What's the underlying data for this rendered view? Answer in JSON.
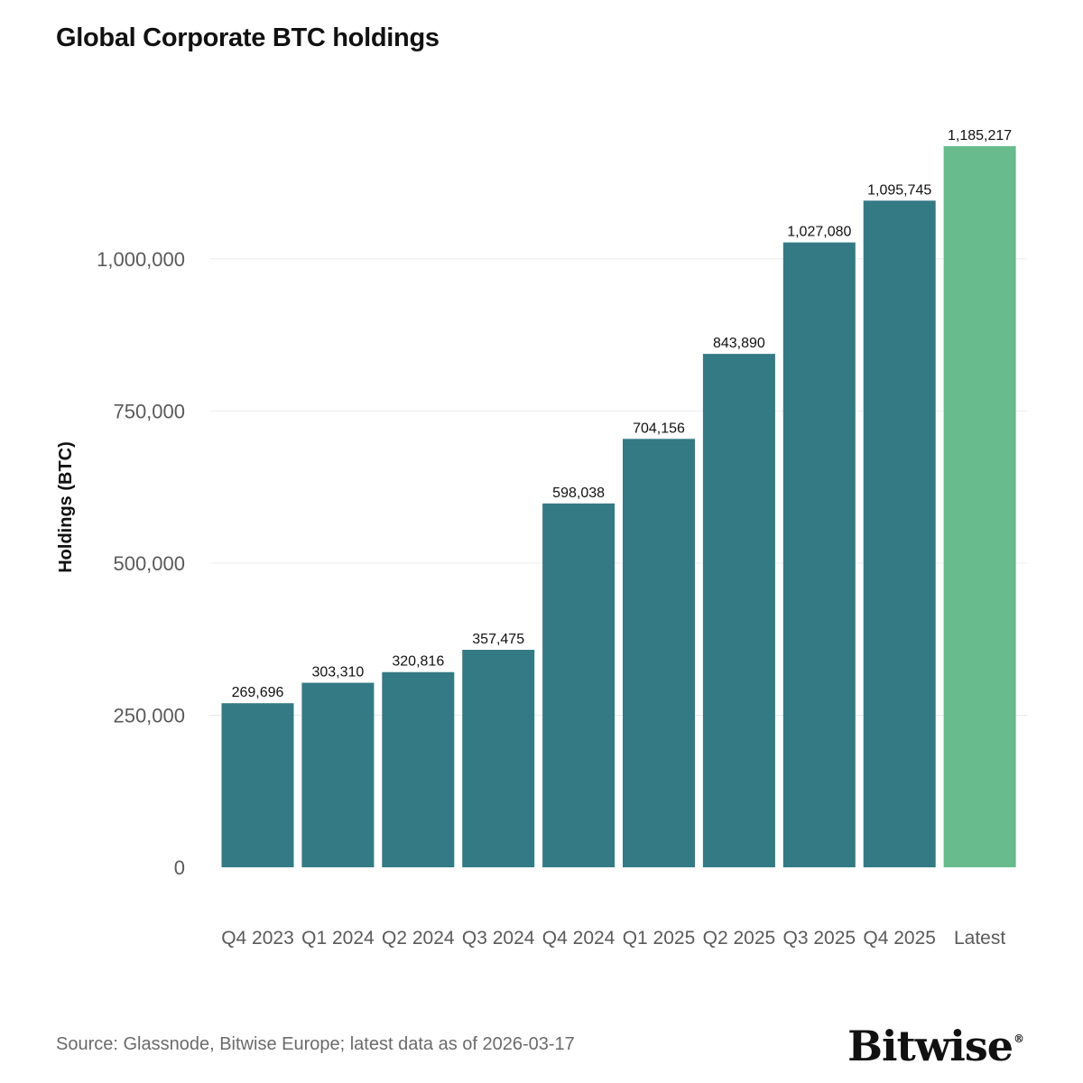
{
  "chart_data": {
    "type": "bar",
    "title": "Global Corporate BTC holdings",
    "xlabel": "",
    "ylabel": "Holdings (BTC)",
    "categories": [
      "Q4 2023",
      "Q1 2024",
      "Q2 2024",
      "Q3 2024",
      "Q4 2024",
      "Q1 2025",
      "Q2 2025",
      "Q3 2025",
      "Q4 2025",
      "Latest"
    ],
    "values": [
      269696,
      303310,
      320816,
      357475,
      598038,
      704156,
      843890,
      1027080,
      1095745,
      1185217
    ],
    "value_labels": [
      "269,696",
      "303,310",
      "320,816",
      "357,475",
      "598,038",
      "704,156",
      "843,890",
      "1,027,080",
      "1,095,745",
      "1,185,217"
    ],
    "ylim": [
      0,
      1185217
    ],
    "yticks": [
      0,
      250000,
      500000,
      750000,
      1000000
    ],
    "ytick_labels": [
      "0",
      "250,000",
      "500,000",
      "750,000",
      "1,000,000"
    ],
    "grid": true,
    "colors": {
      "bar": "#347a85",
      "highlight": "#68bb8c",
      "grid": "#ececec"
    },
    "highlight_category": "Latest"
  },
  "footer": {
    "source": "Source: Glassnode, Bitwise Europe; latest data as of 2026-03-17",
    "brand": "Bitwise",
    "brand_mark": "®"
  }
}
